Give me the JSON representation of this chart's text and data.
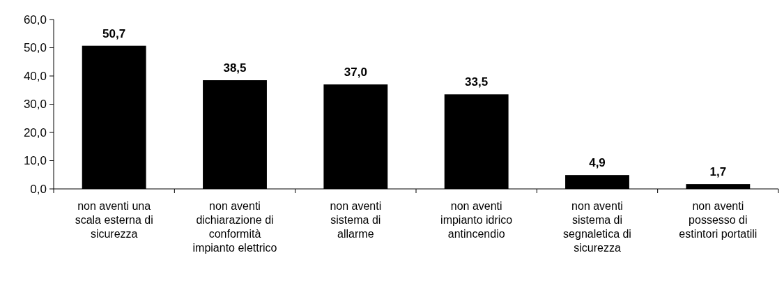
{
  "chart_data": {
    "type": "bar",
    "categories": [
      "non aventi una\nscala esterna di\nsicurezza",
      "non aventi\ndichiarazione di\nconformità\nimpianto elettrico",
      "non aventi\nsistema di\nallarme",
      "non aventi\nimpianto idrico\nantincendio",
      "non aventi\nsistema di\nsegnaletica di\nsicurezza",
      "non aventi\npossesso di\nestintori portatili"
    ],
    "values": [
      50.7,
      38.5,
      37.0,
      33.5,
      4.9,
      1.7
    ],
    "value_labels": [
      "50,7",
      "38,5",
      "37,0",
      "33,5",
      "4,9",
      "1,7"
    ],
    "color": "#000000",
    "ylim": [
      0,
      60
    ],
    "yticks": [
      {
        "value": 0,
        "label": "0,0"
      },
      {
        "value": 10,
        "label": "10,0"
      },
      {
        "value": 20,
        "label": "20,0"
      },
      {
        "value": 30,
        "label": "30,0"
      },
      {
        "value": 40,
        "label": "40,0"
      },
      {
        "value": 50,
        "label": "50,0"
      },
      {
        "value": 60,
        "label": "60,0"
      }
    ],
    "grid": false
  }
}
